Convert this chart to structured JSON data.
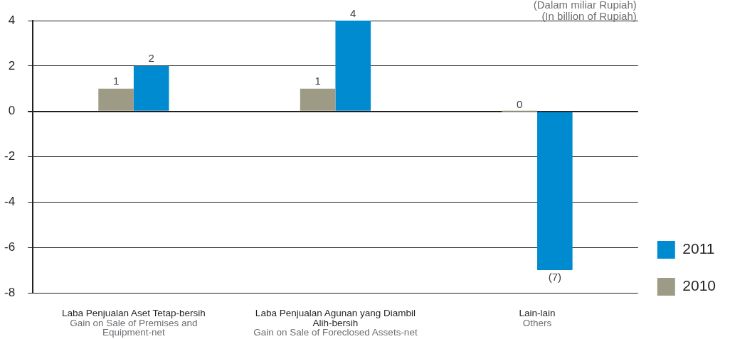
{
  "chart_data": {
    "type": "bar",
    "categories": [
      "Laba Penjualan Aset Tetap-bersih\nGain on Sale of Premises and Equipment-net",
      "Laba Penjualan Agunan yang Diambil Alih-bersih\nGain on Sale of Foreclosed Assets-net",
      "Lain-lain\nOthers"
    ],
    "series": [
      {
        "name": "2010",
        "color": "#9d9b85",
        "values": [
          1,
          1,
          0
        ],
        "value_labels": [
          "1",
          "1",
          "0"
        ]
      },
      {
        "name": "2011",
        "color": "#008bd0",
        "values": [
          2,
          4,
          -7
        ],
        "value_labels": [
          "2",
          "4",
          "(7)"
        ]
      }
    ],
    "ylim": [
      -8,
      4
    ],
    "yticks": [
      -8,
      -6,
      -4,
      -2,
      0,
      2,
      4
    ],
    "grid": "y",
    "legend": "bottom right",
    "annotations": [
      "(Dalam miliar Rupiah)",
      "(In billion of Rupiah)"
    ]
  }
}
